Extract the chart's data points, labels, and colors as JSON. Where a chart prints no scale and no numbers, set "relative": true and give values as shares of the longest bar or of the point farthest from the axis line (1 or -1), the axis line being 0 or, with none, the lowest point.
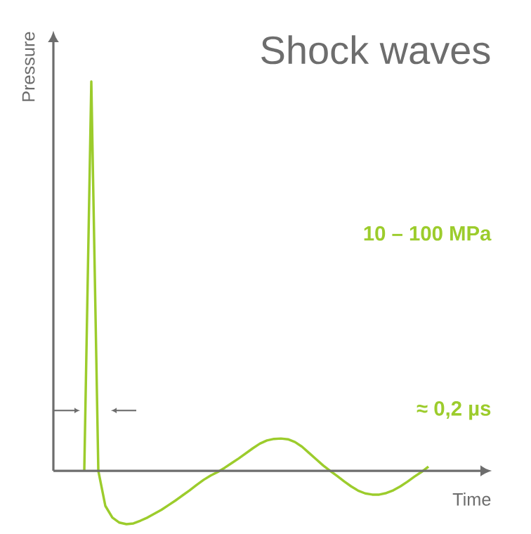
{
  "chart_data": {
    "type": "line",
    "title": "Shock waves",
    "xlabel": "Time",
    "ylabel": "Pressure",
    "relative": true,
    "annotations": [
      "10 – 100 MPa",
      "≈ 0,2 µs"
    ],
    "categories": [
      null,
      null,
      null,
      null,
      null,
      null,
      null,
      null,
      null,
      null,
      null,
      null,
      null,
      null,
      null,
      null,
      null,
      null,
      null,
      null,
      null,
      null,
      null,
      null,
      null,
      null,
      null,
      null,
      null,
      null,
      null,
      null,
      null,
      null,
      null,
      null,
      null,
      null,
      null,
      null,
      null,
      null,
      null,
      null,
      null,
      null,
      null,
      null,
      null,
      null
    ],
    "series": [
      {
        "color": "#9ccc2c",
        "values": [
          0,
          1,
          0,
          -0.09,
          -0.12,
          -0.133,
          -0.137,
          -0.135,
          -0.128,
          -0.12,
          -0.11,
          -0.1,
          -0.088,
          -0.076,
          -0.063,
          -0.05,
          -0.036,
          -0.023,
          -0.012,
          -0.003,
          0.008,
          0.02,
          0.032,
          0.045,
          0.058,
          0.07,
          0.078,
          0.082,
          0.083,
          0.081,
          0.074,
          0.062,
          0.046,
          0.03,
          0.014,
          0.0,
          -0.013,
          -0.027,
          -0.04,
          -0.051,
          -0.058,
          -0.061,
          -0.061,
          -0.057,
          -0.05,
          -0.04,
          -0.028,
          -0.015,
          -0.003,
          0.011
        ]
      }
    ],
    "marker": "none",
    "line_style": "solid"
  }
}
